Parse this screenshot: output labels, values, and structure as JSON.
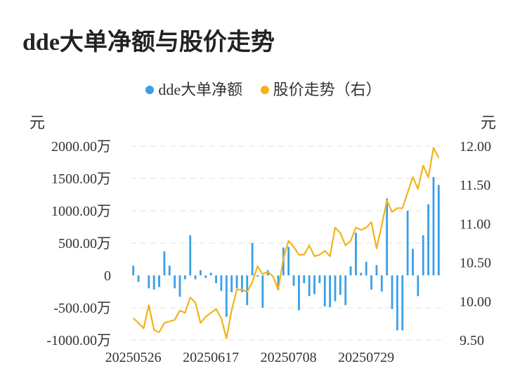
{
  "chart_data": {
    "type": "bar+line",
    "title": "dde大单净额与股价走势",
    "legend": [
      {
        "name": "dde大单净额",
        "color": "#3a9fe6"
      },
      {
        "name": "股价走势（右）",
        "color": "#f2b31a"
      }
    ],
    "left_unit": "元",
    "right_unit": "元",
    "left_axis": {
      "min": -1000,
      "max": 2000,
      "tick_values": [
        2000,
        1500,
        1000,
        500,
        0,
        -500,
        -1000
      ],
      "tick_labels": [
        "2000.00万",
        "1500.00万",
        "1000.00万",
        "500.00万",
        "0",
        "-500.00万",
        "-1000.00万"
      ]
    },
    "right_axis": {
      "min": 9.5,
      "max": 12.0,
      "tick_values": [
        12.0,
        11.5,
        11.0,
        10.5,
        10.0,
        9.5
      ],
      "tick_labels": [
        "12.00",
        "11.50",
        "11.00",
        "10.50",
        "10.00",
        "9.50"
      ]
    },
    "x_labels": [
      {
        "index": 0,
        "label": "20250526"
      },
      {
        "index": 15,
        "label": "20250617"
      },
      {
        "index": 30,
        "label": "20250708"
      },
      {
        "index": 45,
        "label": "20250729"
      }
    ],
    "bar_values": [
      150,
      -100,
      0,
      -200,
      -220,
      -180,
      370,
      150,
      -200,
      -330,
      -60,
      620,
      -60,
      80,
      -40,
      40,
      -120,
      -240,
      -640,
      -260,
      -200,
      -260,
      -460,
      500,
      -20,
      -500,
      80,
      0,
      -230,
      430,
      440,
      -160,
      -540,
      -120,
      -320,
      -290,
      -120,
      -480,
      -490,
      -400,
      -300,
      -460,
      140,
      660,
      40,
      210,
      -220,
      160,
      -250,
      1190,
      -520,
      -850,
      -850,
      1000,
      410,
      -320,
      620,
      1100,
      1520,
      1400
    ],
    "line_values": [
      9.78,
      9.72,
      9.65,
      9.95,
      9.63,
      9.6,
      9.72,
      9.74,
      9.76,
      9.88,
      9.85,
      10.05,
      9.98,
      9.72,
      9.8,
      9.85,
      9.9,
      9.78,
      9.52,
      9.88,
      10.15,
      10.15,
      10.12,
      10.25,
      10.45,
      10.35,
      10.38,
      10.32,
      10.15,
      10.55,
      10.78,
      10.7,
      10.6,
      10.6,
      10.72,
      10.58,
      10.6,
      10.65,
      10.58,
      10.95,
      10.88,
      10.72,
      10.78,
      10.95,
      10.92,
      10.95,
      11.02,
      10.68,
      10.98,
      11.3,
      11.15,
      11.2,
      11.2,
      11.4,
      11.6,
      11.45,
      11.75,
      11.6,
      11.98,
      11.85
    ]
  }
}
